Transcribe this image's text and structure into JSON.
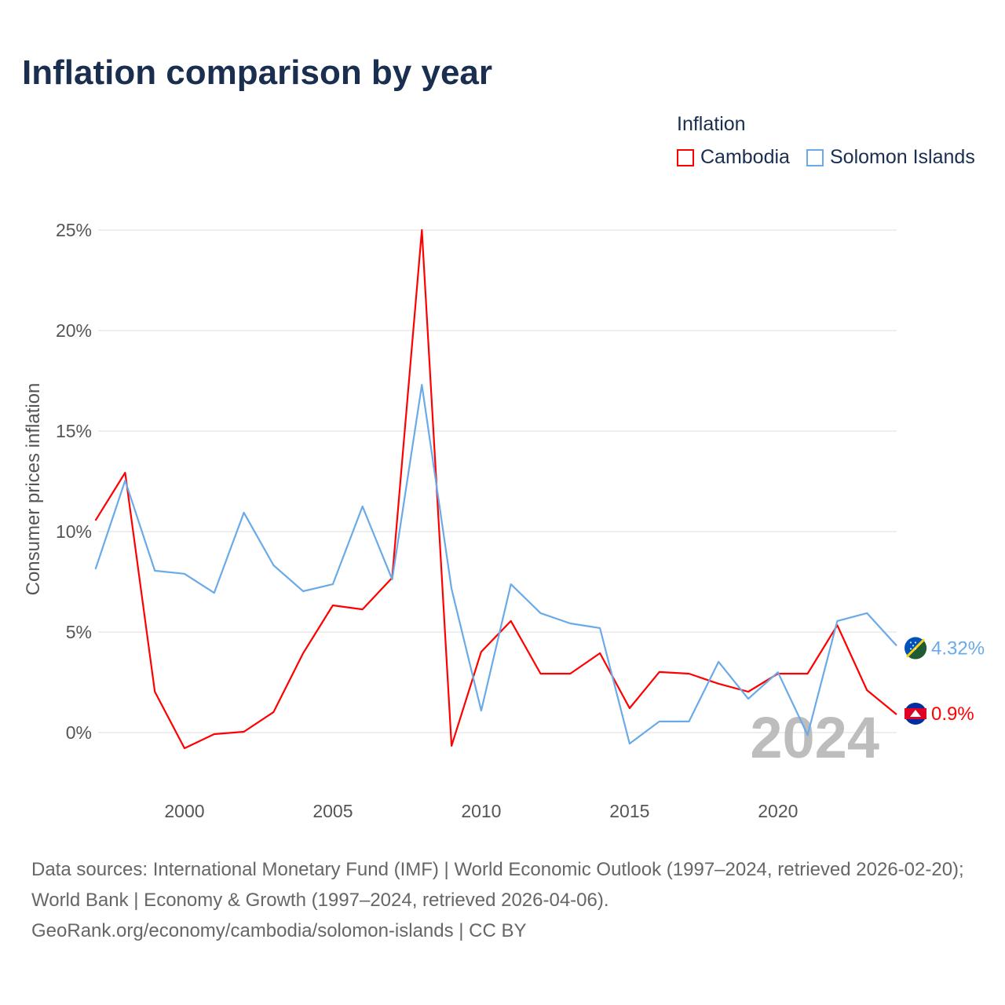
{
  "title": "Inflation comparison by year",
  "legend": {
    "title": "Inflation",
    "items": [
      {
        "label": "Cambodia",
        "color": "#ff0000"
      },
      {
        "label": "Solomon Islands",
        "color": "#6aaae8"
      }
    ]
  },
  "chart_data": {
    "type": "line",
    "title": "Inflation comparison by year",
    "xlabel": "",
    "ylabel": "Consumer prices inflation",
    "xlim": [
      1997,
      2024
    ],
    "ylim": [
      -2,
      25
    ],
    "x_ticks": [
      2000,
      2005,
      2010,
      2015,
      2020
    ],
    "x_tick_labels": [
      "2000",
      "2005",
      "2010",
      "2015",
      "2020"
    ],
    "y_ticks": [
      0,
      5,
      10,
      15,
      20,
      25
    ],
    "y_tick_labels": [
      "0%",
      "5%",
      "10%",
      "15%",
      "20%",
      "25%"
    ],
    "grid": true,
    "legend_position": "top-right",
    "year_watermark": "2024",
    "x": [
      1997,
      1998,
      1999,
      2000,
      2001,
      2002,
      2003,
      2004,
      2005,
      2006,
      2007,
      2008,
      2009,
      2010,
      2011,
      2012,
      2013,
      2014,
      2015,
      2016,
      2017,
      2018,
      2019,
      2020,
      2021,
      2022,
      2023,
      2024
    ],
    "series": [
      {
        "name": "Cambodia",
        "color": "#ff0000",
        "end_label": "0.9%",
        "flag": "cambodia-flag",
        "values": [
          10.55,
          12.93,
          2.03,
          -0.78,
          -0.08,
          0.04,
          1.02,
          3.95,
          6.33,
          6.13,
          7.7,
          25.0,
          -0.66,
          4.02,
          5.55,
          2.93,
          2.93,
          3.95,
          1.21,
          3.01,
          2.93,
          2.43,
          2.03,
          2.93,
          2.93,
          5.34,
          2.11,
          0.9
        ]
      },
      {
        "name": "Solomon Islands",
        "color": "#6aaae8",
        "end_label": "4.32%",
        "flag": "solomon-islands-flag",
        "values": [
          8.13,
          12.54,
          8.05,
          7.9,
          6.95,
          10.94,
          8.32,
          7.03,
          7.38,
          11.25,
          7.62,
          17.3,
          7.15,
          1.09,
          7.38,
          5.94,
          5.43,
          5.2,
          -0.55,
          0.55,
          0.55,
          3.52,
          1.68,
          3.0,
          -0.12,
          5.55,
          5.94,
          4.32
        ]
      }
    ]
  },
  "sources": {
    "line1": "Data sources: International Monetary Fund (IMF) | World Economic Outlook (1997–2024, retrieved 2026-02-20); World Bank | Economy & Growth (1997–2024, retrieved 2026-04-06).",
    "line2": "GeoRank.org/economy/cambodia/solomon-islands | CC BY"
  }
}
